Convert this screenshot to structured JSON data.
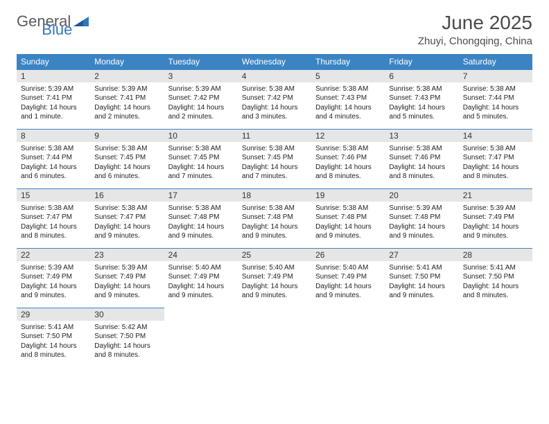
{
  "logo": {
    "text1": "General",
    "text2": "Blue"
  },
  "title": "June 2025",
  "subtitle": "Zhuyi, Chongqing, China",
  "colors": {
    "header_bg": "#3b84c4",
    "header_fg": "#ffffff",
    "daynum_bg": "#e6e6e6",
    "border": "#3b84c4",
    "logo_gray": "#5a5a5a",
    "logo_blue": "#2f78bf"
  },
  "weekdays": [
    "Sunday",
    "Monday",
    "Tuesday",
    "Wednesday",
    "Thursday",
    "Friday",
    "Saturday"
  ],
  "weeks": [
    [
      {
        "n": "1",
        "sunrise": "5:39 AM",
        "sunset": "7:41 PM",
        "daylight": "14 hours and 1 minute."
      },
      {
        "n": "2",
        "sunrise": "5:39 AM",
        "sunset": "7:41 PM",
        "daylight": "14 hours and 2 minutes."
      },
      {
        "n": "3",
        "sunrise": "5:39 AM",
        "sunset": "7:42 PM",
        "daylight": "14 hours and 2 minutes."
      },
      {
        "n": "4",
        "sunrise": "5:38 AM",
        "sunset": "7:42 PM",
        "daylight": "14 hours and 3 minutes."
      },
      {
        "n": "5",
        "sunrise": "5:38 AM",
        "sunset": "7:43 PM",
        "daylight": "14 hours and 4 minutes."
      },
      {
        "n": "6",
        "sunrise": "5:38 AM",
        "sunset": "7:43 PM",
        "daylight": "14 hours and 5 minutes."
      },
      {
        "n": "7",
        "sunrise": "5:38 AM",
        "sunset": "7:44 PM",
        "daylight": "14 hours and 5 minutes."
      }
    ],
    [
      {
        "n": "8",
        "sunrise": "5:38 AM",
        "sunset": "7:44 PM",
        "daylight": "14 hours and 6 minutes."
      },
      {
        "n": "9",
        "sunrise": "5:38 AM",
        "sunset": "7:45 PM",
        "daylight": "14 hours and 6 minutes."
      },
      {
        "n": "10",
        "sunrise": "5:38 AM",
        "sunset": "7:45 PM",
        "daylight": "14 hours and 7 minutes."
      },
      {
        "n": "11",
        "sunrise": "5:38 AM",
        "sunset": "7:45 PM",
        "daylight": "14 hours and 7 minutes."
      },
      {
        "n": "12",
        "sunrise": "5:38 AM",
        "sunset": "7:46 PM",
        "daylight": "14 hours and 8 minutes."
      },
      {
        "n": "13",
        "sunrise": "5:38 AM",
        "sunset": "7:46 PM",
        "daylight": "14 hours and 8 minutes."
      },
      {
        "n": "14",
        "sunrise": "5:38 AM",
        "sunset": "7:47 PM",
        "daylight": "14 hours and 8 minutes."
      }
    ],
    [
      {
        "n": "15",
        "sunrise": "5:38 AM",
        "sunset": "7:47 PM",
        "daylight": "14 hours and 8 minutes."
      },
      {
        "n": "16",
        "sunrise": "5:38 AM",
        "sunset": "7:47 PM",
        "daylight": "14 hours and 9 minutes."
      },
      {
        "n": "17",
        "sunrise": "5:38 AM",
        "sunset": "7:48 PM",
        "daylight": "14 hours and 9 minutes."
      },
      {
        "n": "18",
        "sunrise": "5:38 AM",
        "sunset": "7:48 PM",
        "daylight": "14 hours and 9 minutes."
      },
      {
        "n": "19",
        "sunrise": "5:38 AM",
        "sunset": "7:48 PM",
        "daylight": "14 hours and 9 minutes."
      },
      {
        "n": "20",
        "sunrise": "5:39 AM",
        "sunset": "7:48 PM",
        "daylight": "14 hours and 9 minutes."
      },
      {
        "n": "21",
        "sunrise": "5:39 AM",
        "sunset": "7:49 PM",
        "daylight": "14 hours and 9 minutes."
      }
    ],
    [
      {
        "n": "22",
        "sunrise": "5:39 AM",
        "sunset": "7:49 PM",
        "daylight": "14 hours and 9 minutes."
      },
      {
        "n": "23",
        "sunrise": "5:39 AM",
        "sunset": "7:49 PM",
        "daylight": "14 hours and 9 minutes."
      },
      {
        "n": "24",
        "sunrise": "5:40 AM",
        "sunset": "7:49 PM",
        "daylight": "14 hours and 9 minutes."
      },
      {
        "n": "25",
        "sunrise": "5:40 AM",
        "sunset": "7:49 PM",
        "daylight": "14 hours and 9 minutes."
      },
      {
        "n": "26",
        "sunrise": "5:40 AM",
        "sunset": "7:49 PM",
        "daylight": "14 hours and 9 minutes."
      },
      {
        "n": "27",
        "sunrise": "5:41 AM",
        "sunset": "7:50 PM",
        "daylight": "14 hours and 9 minutes."
      },
      {
        "n": "28",
        "sunrise": "5:41 AM",
        "sunset": "7:50 PM",
        "daylight": "14 hours and 8 minutes."
      }
    ],
    [
      {
        "n": "29",
        "sunrise": "5:41 AM",
        "sunset": "7:50 PM",
        "daylight": "14 hours and 8 minutes."
      },
      {
        "n": "30",
        "sunrise": "5:42 AM",
        "sunset": "7:50 PM",
        "daylight": "14 hours and 8 minutes."
      },
      null,
      null,
      null,
      null,
      null
    ]
  ],
  "labels": {
    "sunrise": "Sunrise: ",
    "sunset": "Sunset: ",
    "daylight": "Daylight: "
  }
}
